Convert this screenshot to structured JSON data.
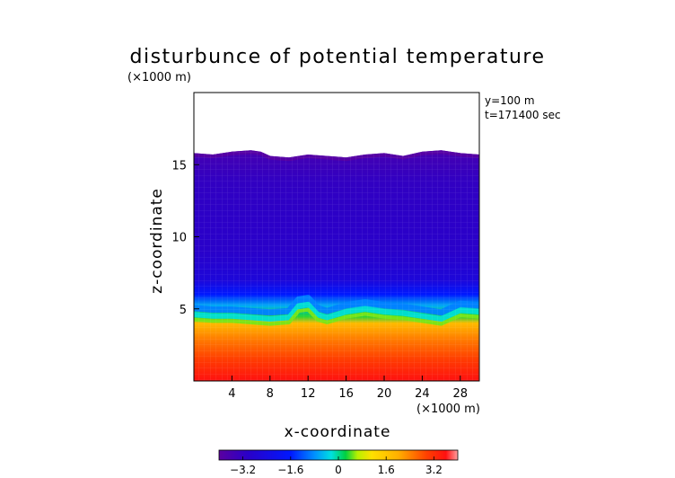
{
  "chart_data": {
    "type": "heatmap",
    "title": "disturbunce of potential temperature",
    "xlabel": "x-coordinate",
    "ylabel": "z-coordinate",
    "x_unit": "(×1000 m)",
    "y_unit": "(×1000 m)",
    "xlim": [
      0,
      30
    ],
    "ylim": [
      0,
      20
    ],
    "x_ticks": [
      4,
      8,
      12,
      16,
      20,
      24,
      28
    ],
    "y_ticks": [
      5,
      10,
      15
    ],
    "annotations": [
      "y=100 m",
      "t=171400 sec"
    ],
    "colorbar": {
      "range": [
        -4,
        4
      ],
      "ticks": [
        -3.2,
        -1.6,
        0,
        1.6,
        3.2
      ],
      "tick_labels": [
        "−3.2",
        "−1.6",
        "0",
        "1.6",
        "3.2"
      ]
    },
    "field_top": {
      "x": [
        0,
        2,
        4,
        6,
        7,
        8,
        10,
        12,
        14,
        16,
        18,
        20,
        22,
        24,
        26,
        28,
        30
      ],
      "z": [
        15.8,
        15.7,
        15.9,
        16.0,
        15.9,
        15.6,
        15.5,
        15.7,
        15.6,
        15.5,
        15.7,
        15.8,
        15.6,
        15.9,
        16.0,
        15.8,
        15.7
      ]
    },
    "green_band": {
      "x": [
        0,
        2,
        4,
        6,
        8,
        10,
        11,
        12,
        13,
        14,
        16,
        18,
        20,
        22,
        24,
        26,
        27,
        28,
        30
      ],
      "z": [
        4.6,
        4.5,
        4.5,
        4.4,
        4.3,
        4.4,
        5.2,
        5.3,
        4.6,
        4.4,
        4.8,
        5.0,
        4.8,
        4.7,
        4.5,
        4.3,
        4.6,
        4.9,
        4.8
      ]
    },
    "color_profile": {
      "z": [
        0,
        1.5,
        3,
        4,
        4.5,
        5.2,
        6,
        7,
        9,
        12,
        14,
        15.5,
        16
      ],
      "value": [
        3.6,
        3.0,
        2.4,
        1.8,
        0.3,
        -0.6,
        -1.6,
        -2.6,
        -3.0,
        -3.1,
        -3.2,
        -3.5,
        -3.8
      ]
    }
  }
}
